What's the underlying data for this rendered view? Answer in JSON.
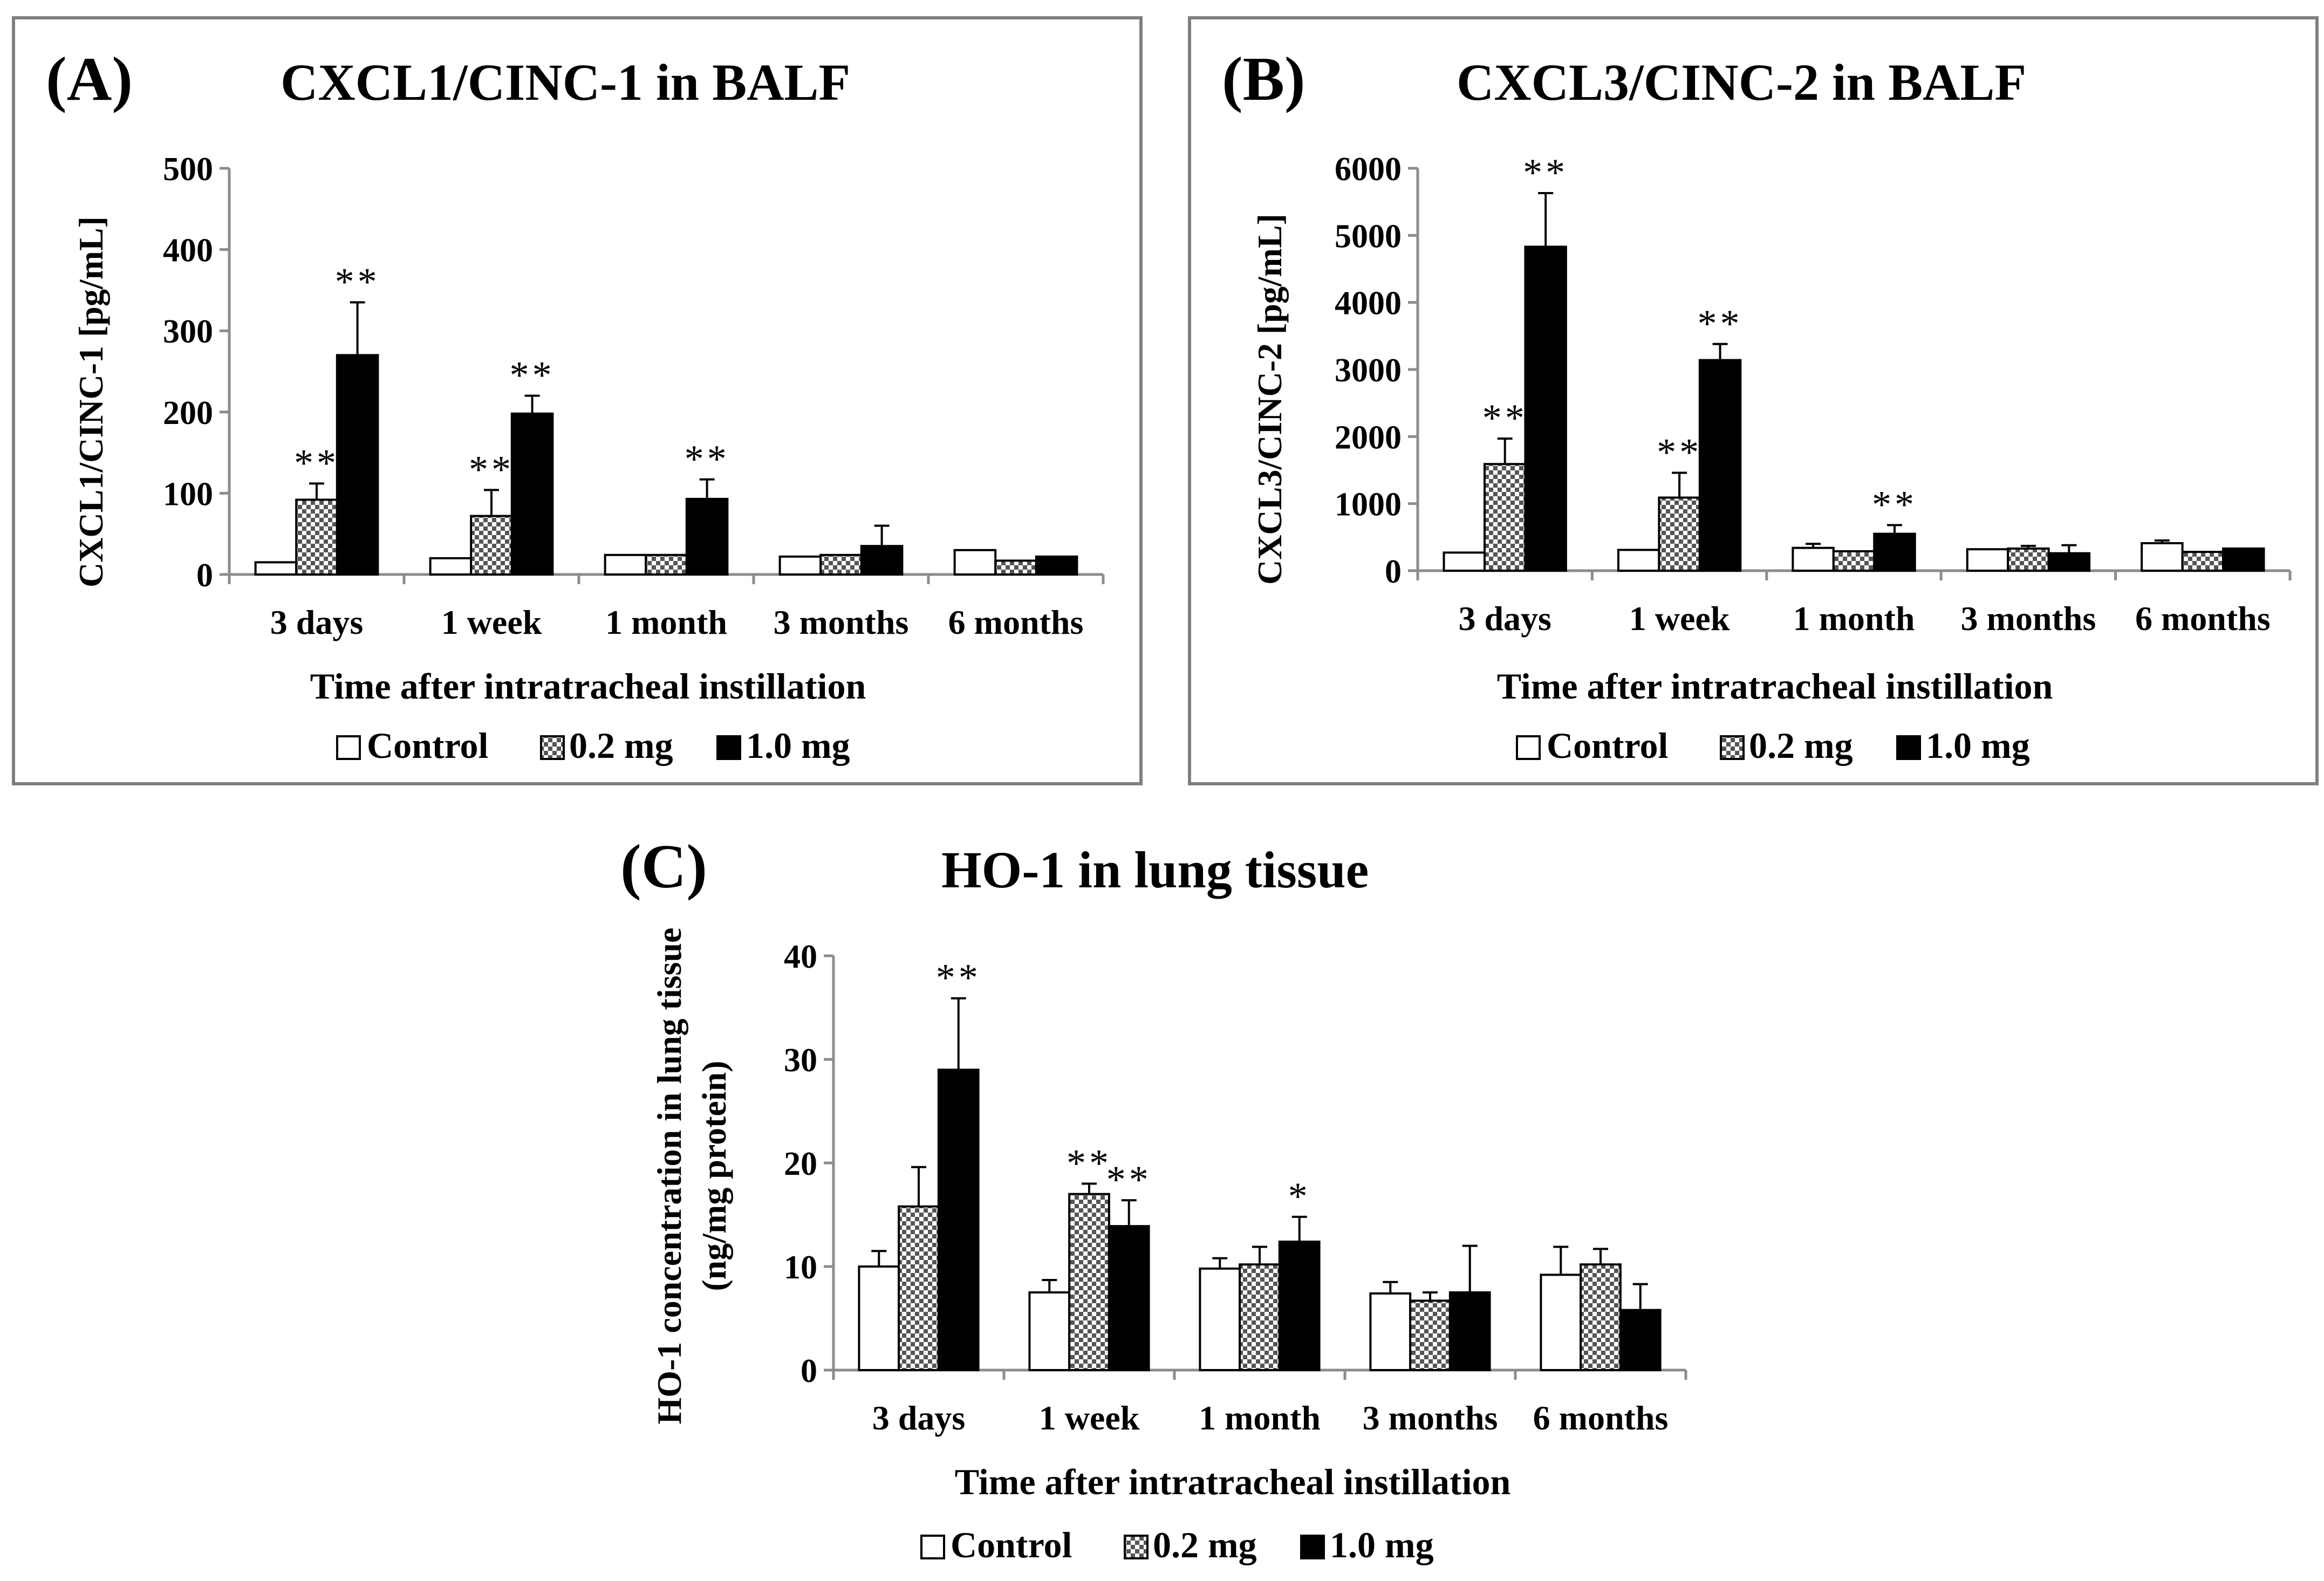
{
  "chart_data": [
    {
      "id": "A",
      "type": "bar",
      "panel_label": "(A)",
      "title": "CXCL1/CINC-1 in BALF",
      "xlabel": "Time after intratracheal instillation",
      "ylabel": "CXCL1/CINC-1 [pg/mL]",
      "ylim": [
        0,
        500
      ],
      "yticks": [
        "0",
        "100",
        "200",
        "300",
        "400",
        "500"
      ],
      "categories": [
        "3 days",
        "1 week",
        "1 month",
        "3 months",
        "6 months"
      ],
      "series": [
        {
          "name": "Control",
          "values": [
            15,
            20,
            24,
            22,
            30
          ],
          "errors": [
            0,
            0,
            0,
            0,
            0
          ],
          "significance": [
            "",
            "",
            "",
            "",
            ""
          ]
        },
        {
          "name": "0.2 mg",
          "values": [
            92,
            72,
            24,
            24,
            17
          ],
          "errors": [
            20,
            32,
            0,
            0,
            0
          ],
          "significance": [
            "**",
            "**",
            "",
            "",
            ""
          ]
        },
        {
          "name": "1.0 mg",
          "values": [
            270,
            198,
            93,
            35,
            22
          ],
          "errors": [
            65,
            22,
            24,
            25,
            0
          ],
          "significance": [
            "**",
            "**",
            "**",
            "",
            ""
          ]
        }
      ],
      "legend": [
        "Control",
        "0.2 mg",
        "1.0 mg"
      ]
    },
    {
      "id": "B",
      "type": "bar",
      "panel_label": "(B)",
      "title": "CXCL3/CINC-2 in BALF",
      "xlabel": "Time after intratracheal instillation",
      "ylabel": "CXCL3/CINC-2 [pg/mL]",
      "ylim": [
        0,
        6000
      ],
      "yticks": [
        "0",
        "1000",
        "2000",
        "3000",
        "4000",
        "5000",
        "6000"
      ],
      "categories": [
        "3 days",
        "1 week",
        "1 month",
        "3 months",
        "6 months"
      ],
      "series": [
        {
          "name": "Control",
          "values": [
            270,
            310,
            340,
            320,
            410
          ],
          "errors": [
            0,
            0,
            60,
            0,
            40
          ],
          "significance": [
            "",
            "",
            "",
            "",
            ""
          ]
        },
        {
          "name": "0.2 mg",
          "values": [
            1590,
            1090,
            290,
            330,
            280
          ],
          "errors": [
            380,
            370,
            0,
            40,
            0
          ],
          "significance": [
            "**",
            "**",
            "",
            "",
            ""
          ]
        },
        {
          "name": "1.0 mg",
          "values": [
            4830,
            3140,
            550,
            260,
            330
          ],
          "errors": [
            800,
            240,
            130,
            120,
            0
          ],
          "significance": [
            "**",
            "**",
            "**",
            "",
            ""
          ]
        }
      ],
      "legend": [
        "Control",
        "0.2 mg",
        "1.0 mg"
      ]
    },
    {
      "id": "C",
      "type": "bar",
      "panel_label": "(C)",
      "title": "HO-1 in lung tissue",
      "xlabel": "Time after intratracheal instillation",
      "ylabel_lines": [
        "HO-1 concentration in lung tissue",
        "(ng/mg protein)"
      ],
      "ylim": [
        0,
        40
      ],
      "yticks": [
        "0",
        "10",
        "20",
        "30",
        "40"
      ],
      "categories": [
        "3 days",
        "1 week",
        "1 month",
        "3 months",
        "6 months"
      ],
      "series": [
        {
          "name": "Control",
          "values": [
            10,
            7.5,
            9.8,
            7.4,
            9.2
          ],
          "errors": [
            1.5,
            1.2,
            1.0,
            1.1,
            2.7
          ],
          "significance": [
            "",
            "",
            "",
            "",
            ""
          ]
        },
        {
          "name": "0.2 mg",
          "values": [
            15.8,
            17.0,
            10.2,
            6.7,
            10.2
          ],
          "errors": [
            3.8,
            1.0,
            1.7,
            0.8,
            1.5
          ],
          "significance": [
            "",
            "**",
            "",
            "",
            ""
          ]
        },
        {
          "name": "1.0 mg",
          "values": [
            29.0,
            13.9,
            12.4,
            7.5,
            5.8
          ],
          "errors": [
            6.9,
            2.5,
            2.4,
            4.5,
            2.5
          ],
          "significance": [
            "**",
            "**",
            "*",
            "",
            ""
          ]
        }
      ],
      "legend": [
        "Control",
        "0.2 mg",
        "1.0 mg"
      ]
    }
  ]
}
